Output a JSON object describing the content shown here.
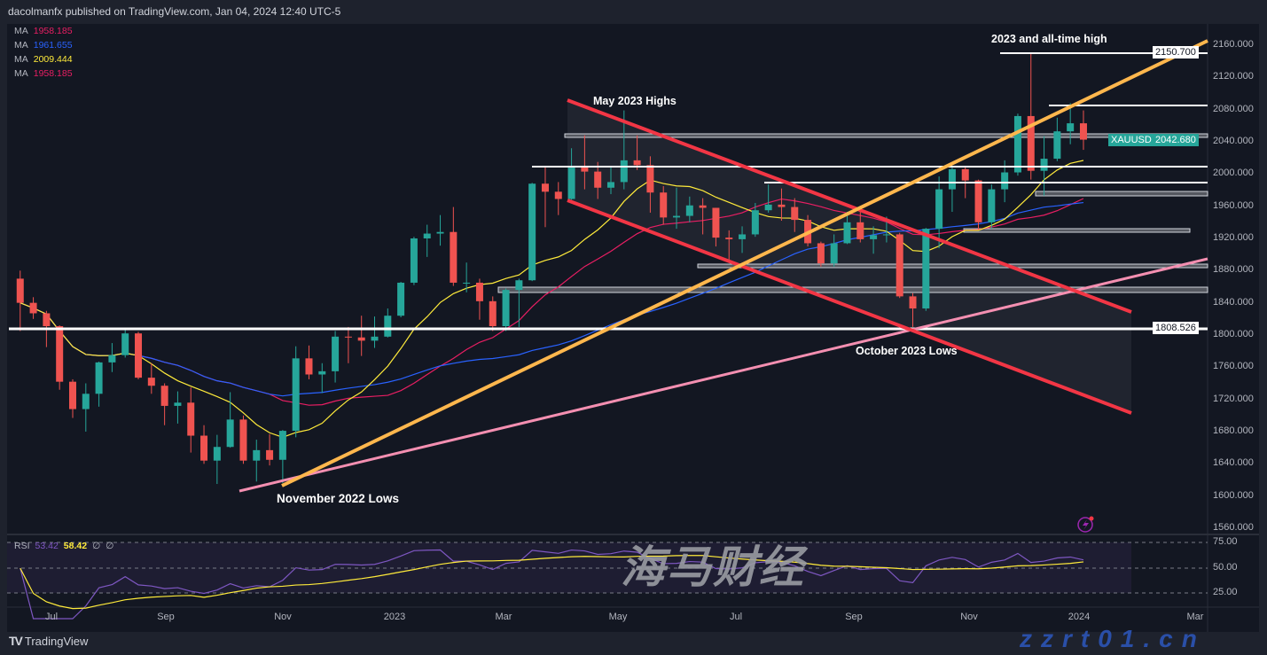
{
  "header": {
    "published": "dacolmanfx published on TradingView.com, Jan 04, 2024 12:40 UTC-5"
  },
  "legend": [
    {
      "label": "MA",
      "value": "1958.185",
      "color": "#e91e63"
    },
    {
      "label": "MA",
      "value": "1961.655",
      "color": "#2962ff"
    },
    {
      "label": "MA",
      "value": "2009.444",
      "color": "#ffeb3b"
    },
    {
      "label": "MA",
      "value": "1958.185",
      "color": "#e91e63"
    }
  ],
  "rsi_legend": {
    "label": "RSI",
    "value": "53.42",
    "ma_value": "58.42",
    "extra1": "∅",
    "extra2": "∅"
  },
  "annotations": {
    "ath": "2023 and all-time high",
    "may_highs": "May 2023 Highs",
    "oct_lows": "October 2023 Lows",
    "nov_lows": "November 2022 Lows"
  },
  "price_labels": {
    "ath": "2150.700",
    "symbol": "XAUUSD",
    "last": "2042.680",
    "support": "1808.526"
  },
  "colors": {
    "up": "#26a69a",
    "down": "#ef5350",
    "orange_trend": "#ffb74d",
    "red_channel": "#f23645",
    "pink_trend": "#f48fb1",
    "rsi": "#7e57c2",
    "rsi_ma": "#ffeb3b"
  },
  "branding": {
    "logo_icon": "tradingview-logo-icon",
    "logo": "TradingView",
    "watermark_cn": "海马财经",
    "watermark_url": "zzrt01.cn",
    "alert_icon": "lightning-icon"
  },
  "chart_data": {
    "type": "candlestick",
    "symbol": "XAUUSD",
    "interval_used": "weekly (approximated from daily chart)",
    "ylim": [
      1540,
      2180
    ],
    "y_ticks": [
      "2160.000",
      "2120.000",
      "2080.000",
      "2040.000",
      "2000.000",
      "1960.000",
      "1920.000",
      "1880.000",
      "1840.000",
      "1800.000",
      "1760.000",
      "1720.000",
      "1680.000",
      "1640.000",
      "1600.000",
      "1560.000"
    ],
    "x_ticks": [
      "Jul",
      "Sep",
      "Nov",
      "2023",
      "Mar",
      "May",
      "Jul",
      "Sep",
      "Nov",
      "2024",
      "Mar"
    ],
    "rsi_ticks": [
      "75.00",
      "50.00",
      "25.00"
    ],
    "ma_lengths": [
      20,
      40,
      10
    ],
    "ohlc": [
      [
        "2022-06-13",
        1870,
        1880,
        1805,
        1840
      ],
      [
        "2022-06-20",
        1840,
        1847,
        1820,
        1827
      ],
      [
        "2022-06-27",
        1827,
        1830,
        1785,
        1811
      ],
      [
        "2022-07-04",
        1811,
        1812,
        1732,
        1742
      ],
      [
        "2022-07-11",
        1742,
        1745,
        1697,
        1708
      ],
      [
        "2022-07-18",
        1708,
        1740,
        1680,
        1727
      ],
      [
        "2022-07-25",
        1727,
        1767,
        1711,
        1766
      ],
      [
        "2022-08-01",
        1766,
        1790,
        1754,
        1775
      ],
      [
        "2022-08-08",
        1775,
        1808,
        1772,
        1802
      ],
      [
        "2022-08-15",
        1802,
        1804,
        1745,
        1747
      ],
      [
        "2022-08-22",
        1747,
        1765,
        1727,
        1737
      ],
      [
        "2022-08-29",
        1737,
        1740,
        1688,
        1712
      ],
      [
        "2022-09-05",
        1712,
        1730,
        1690,
        1716
      ],
      [
        "2022-09-12",
        1716,
        1735,
        1654,
        1675
      ],
      [
        "2022-09-19",
        1675,
        1688,
        1640,
        1644
      ],
      [
        "2022-09-26",
        1644,
        1676,
        1615,
        1661
      ],
      [
        "2022-10-03",
        1661,
        1729,
        1660,
        1695
      ],
      [
        "2022-10-10",
        1695,
        1700,
        1640,
        1644
      ],
      [
        "2022-10-17",
        1644,
        1670,
        1618,
        1657
      ],
      [
        "2022-10-24",
        1657,
        1677,
        1638,
        1645
      ],
      [
        "2022-10-31",
        1645,
        1682,
        1616,
        1681
      ],
      [
        "2022-11-07",
        1681,
        1786,
        1673,
        1771
      ],
      [
        "2022-11-14",
        1771,
        1787,
        1745,
        1751
      ],
      [
        "2022-11-21",
        1751,
        1765,
        1728,
        1755
      ],
      [
        "2022-11-28",
        1755,
        1805,
        1741,
        1798
      ],
      [
        "2022-12-05",
        1798,
        1810,
        1765,
        1797
      ],
      [
        "2022-12-12",
        1797,
        1824,
        1774,
        1793
      ],
      [
        "2022-12-19",
        1793,
        1823,
        1784,
        1798
      ],
      [
        "2022-12-26",
        1798,
        1833,
        1797,
        1824
      ],
      [
        "2023-01-02",
        1824,
        1866,
        1822,
        1865
      ],
      [
        "2023-01-09",
        1865,
        1922,
        1862,
        1920
      ],
      [
        "2023-01-16",
        1920,
        1937,
        1897,
        1926
      ],
      [
        "2023-01-23",
        1926,
        1949,
        1911,
        1928
      ],
      [
        "2023-01-30",
        1928,
        1959,
        1861,
        1865
      ],
      [
        "2023-02-06",
        1865,
        1890,
        1853,
        1865
      ],
      [
        "2023-02-13",
        1865,
        1870,
        1819,
        1842
      ],
      [
        "2023-02-20",
        1842,
        1848,
        1805,
        1811
      ],
      [
        "2023-02-27",
        1811,
        1858,
        1805,
        1856
      ],
      [
        "2023-03-06",
        1856,
        1870,
        1810,
        1868
      ],
      [
        "2023-03-13",
        1868,
        1989,
        1867,
        1988
      ],
      [
        "2023-03-20",
        1988,
        2010,
        1934,
        1978
      ],
      [
        "2023-03-27",
        1978,
        1990,
        1949,
        1969
      ],
      [
        "2023-04-03",
        1969,
        2032,
        1968,
        2008
      ],
      [
        "2023-04-10",
        2008,
        2048,
        1981,
        2003
      ],
      [
        "2023-04-17",
        2003,
        2015,
        1969,
        1983
      ],
      [
        "2023-04-24",
        1983,
        2009,
        1975,
        1990
      ],
      [
        "2023-05-01",
        1990,
        2079,
        1981,
        2017
      ],
      [
        "2023-05-08",
        2017,
        2048,
        2005,
        2011
      ],
      [
        "2023-05-15",
        2011,
        2022,
        1952,
        1977
      ],
      [
        "2023-05-22",
        1977,
        1985,
        1937,
        1946
      ],
      [
        "2023-05-29",
        1946,
        1983,
        1932,
        1948
      ],
      [
        "2023-06-05",
        1948,
        1972,
        1940,
        1961
      ],
      [
        "2023-06-12",
        1961,
        1970,
        1925,
        1958
      ],
      [
        "2023-06-19",
        1958,
        1958,
        1910,
        1921
      ],
      [
        "2023-06-26",
        1921,
        1930,
        1893,
        1919
      ],
      [
        "2023-07-03",
        1919,
        1935,
        1902,
        1925
      ],
      [
        "2023-07-10",
        1925,
        1964,
        1922,
        1955
      ],
      [
        "2023-07-17",
        1955,
        1987,
        1952,
        1962
      ],
      [
        "2023-07-24",
        1962,
        1982,
        1942,
        1959
      ],
      [
        "2023-07-31",
        1959,
        1970,
        1928,
        1943
      ],
      [
        "2023-08-07",
        1943,
        1949,
        1910,
        1914
      ],
      [
        "2023-08-14",
        1914,
        1916,
        1885,
        1889
      ],
      [
        "2023-08-21",
        1889,
        1925,
        1885,
        1914
      ],
      [
        "2023-08-28",
        1914,
        1953,
        1913,
        1940
      ],
      [
        "2023-09-04",
        1940,
        1953,
        1915,
        1919
      ],
      [
        "2023-09-11",
        1919,
        1935,
        1901,
        1924
      ],
      [
        "2023-09-18",
        1924,
        1947,
        1915,
        1925
      ],
      [
        "2023-09-25",
        1925,
        1927,
        1846,
        1848
      ],
      [
        "2023-10-02",
        1848,
        1852,
        1810,
        1833
      ],
      [
        "2023-10-09",
        1833,
        1933,
        1830,
        1932
      ],
      [
        "2023-10-16",
        1932,
        1997,
        1908,
        1981
      ],
      [
        "2023-10-23",
        1981,
        2009,
        1953,
        2006
      ],
      [
        "2023-10-30",
        2006,
        2009,
        1970,
        1992
      ],
      [
        "2023-11-06",
        1992,
        1993,
        1931,
        1940
      ],
      [
        "2023-11-13",
        1940,
        1987,
        1932,
        1981
      ],
      [
        "2023-11-20",
        1981,
        2017,
        1965,
        2002
      ],
      [
        "2023-11-27",
        2002,
        2075,
        1998,
        2072
      ],
      [
        "2023-12-04",
        2072,
        2150.7,
        1993,
        2004
      ],
      [
        "2023-12-11",
        2004,
        2047,
        1973,
        2019
      ],
      [
        "2023-12-18",
        2019,
        2070,
        2016,
        2053
      ],
      [
        "2023-12-25",
        2053,
        2088,
        2037,
        2063
      ],
      [
        "2024-01-01",
        2063,
        2079,
        2030,
        2042.68
      ]
    ]
  }
}
